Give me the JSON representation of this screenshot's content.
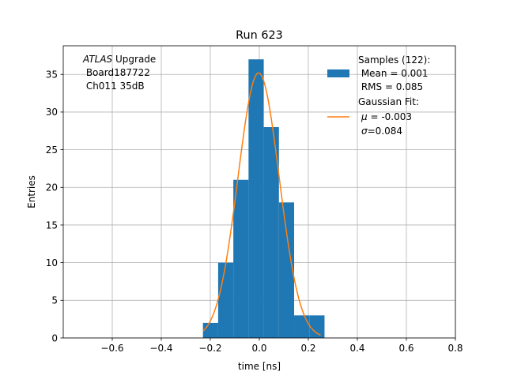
{
  "chart_data": {
    "type": "bar",
    "title": "Run 623",
    "xlabel": "time [ns]",
    "ylabel": "Entries",
    "xlim": [
      -0.8,
      0.8
    ],
    "ylim": [
      0,
      38.8
    ],
    "grid": true,
    "x_ticks": [
      -0.6,
      -0.4,
      -0.2,
      0.0,
      0.2,
      0.4,
      0.6,
      0.8
    ],
    "x_tick_labels": [
      "−0.6",
      "−0.4",
      "−0.2",
      "0.0",
      "0.2",
      "0.4",
      "0.6",
      "0.8"
    ],
    "y_ticks": [
      0,
      5,
      10,
      15,
      20,
      25,
      30,
      35
    ],
    "y_tick_labels": [
      "0",
      "5",
      "10",
      "15",
      "20",
      "25",
      "30",
      "35"
    ],
    "histogram": {
      "bin_edges": [
        -0.23,
        -0.168,
        -0.106,
        -0.044,
        0.018,
        0.08,
        0.142,
        0.204,
        0.266
      ],
      "counts": [
        2,
        10,
        21,
        37,
        28,
        18,
        3,
        3
      ],
      "color": "#1f77b4"
    },
    "fit": {
      "mu": -0.003,
      "sigma": 0.084,
      "amplitude": 35.2,
      "x_range": [
        -0.23,
        0.25
      ],
      "color": "#ff7f0e"
    },
    "annotation": {
      "italic": "ATLAS",
      "rest": " Upgrade",
      "line2": " Board187722",
      "line3": " Ch011 35dB"
    },
    "legend": {
      "position": "top-right",
      "samples": [
        "Samples (122):",
        " Mean = 0.001",
        " RMS = 0.085"
      ],
      "fit_title": "Gaussian Fit:",
      "fit_mu_symbol": "μ",
      "fit_mu_text": " = -0.003",
      "fit_sigma_symbol": "σ",
      "fit_sigma_text": "=0.084"
    }
  }
}
